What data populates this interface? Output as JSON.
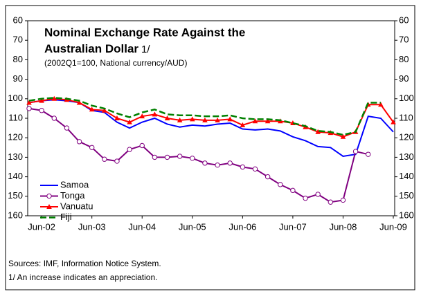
{
  "chart_data": {
    "type": "line",
    "title_lines": [
      "Nominal Exchange Rate Against the",
      "Australian Dollar"
    ],
    "title_note": "1/",
    "subtitle": "(2002Q1=100, National currency/AUD)",
    "categories": [
      null,
      "Jun-02",
      null,
      null,
      null,
      "Jun-03",
      null,
      null,
      null,
      "Jun-04",
      null,
      null,
      null,
      "Jun-05",
      null,
      null,
      null,
      "Jun-06",
      null,
      null,
      null,
      "Jun-07",
      null,
      null,
      null,
      "Jun-08",
      null,
      null,
      null,
      "Jun-09"
    ],
    "series": [
      {
        "name": "Samoa",
        "color": "#0000ff",
        "marker": "none",
        "dash": false,
        "values": [
          102,
          101,
          100.5,
          101,
          102,
          106,
          107,
          112,
          115,
          112,
          110,
          113,
          114.5,
          113.5,
          114,
          113,
          112.5,
          115.5,
          116,
          115.5,
          116.5,
          119.5,
          121.5,
          124.5,
          125,
          129.5,
          128.5,
          109,
          110,
          117
        ]
      },
      {
        "name": "Tonga",
        "color": "#800080",
        "marker": "circle",
        "dash": false,
        "values": [
          105,
          106,
          110,
          115,
          122,
          125,
          131,
          132,
          126,
          124,
          130,
          130,
          129.5,
          130.5,
          133,
          134,
          133,
          135,
          136,
          140,
          144,
          147,
          151,
          149,
          153,
          152,
          127,
          128.5,
          null,
          null
        ]
      },
      {
        "name": "Vanuatu",
        "color": "#ff0000",
        "marker": "triangle",
        "dash": false,
        "values": [
          102,
          101,
          100,
          100.5,
          102,
          105.5,
          106,
          110,
          112,
          109,
          108,
          110,
          111,
          110.5,
          111,
          111,
          110.5,
          113.5,
          111.5,
          111.5,
          111.5,
          112.5,
          114.5,
          117,
          117.5,
          119.5,
          117,
          103,
          103,
          112
        ]
      },
      {
        "name": "Fiji",
        "color": "#008000",
        "marker": "none",
        "dash": true,
        "values": [
          101,
          100,
          99.5,
          100,
          101,
          103.5,
          105,
          107.5,
          109.5,
          107,
          105.5,
          108,
          108.5,
          108.5,
          109,
          109,
          108.5,
          110,
          110.5,
          110.5,
          111,
          112.5,
          114,
          116.5,
          117,
          118.5,
          117,
          102,
          102,
          null
        ]
      }
    ],
    "ylim": [
      60,
      160
    ],
    "yticks": [
      60,
      70,
      80,
      90,
      100,
      110,
      120,
      130,
      140,
      150,
      160
    ],
    "y_inverted": true,
    "right_axis_labels": true,
    "notes": [
      "Sources: IMF, Information Notice System.",
      "1/ An increase indicates an appreciation."
    ]
  }
}
